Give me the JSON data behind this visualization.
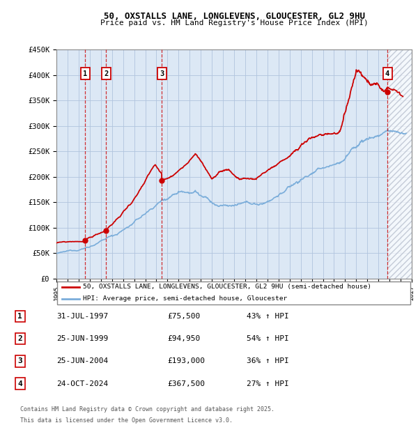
{
  "title_line1": "50, OXSTALLS LANE, LONGLEVENS, GLOUCESTER, GL2 9HU",
  "title_line2": "Price paid vs. HM Land Registry's House Price Index (HPI)",
  "ylabel_ticks": [
    "£0",
    "£50K",
    "£100K",
    "£150K",
    "£200K",
    "£250K",
    "£300K",
    "£350K",
    "£400K",
    "£450K"
  ],
  "ytick_values": [
    0,
    50000,
    100000,
    150000,
    200000,
    250000,
    300000,
    350000,
    400000,
    450000
  ],
  "xmin": 1995.0,
  "xmax": 2027.0,
  "ymin": 0,
  "ymax": 450000,
  "purchases": [
    {
      "num": 1,
      "date": "31-JUL-1997",
      "price": 75500,
      "year": 1997.58,
      "hpi_pct": "43%",
      "label": "1"
    },
    {
      "num": 2,
      "date": "25-JUN-1999",
      "price": 94950,
      "year": 1999.48,
      "hpi_pct": "54%",
      "label": "2"
    },
    {
      "num": 3,
      "date": "25-JUN-2004",
      "price": 193000,
      "year": 2004.48,
      "hpi_pct": "36%",
      "label": "3"
    },
    {
      "num": 4,
      "date": "24-OCT-2024",
      "price": 367500,
      "year": 2024.81,
      "hpi_pct": "27%",
      "label": "4"
    }
  ],
  "red_line_color": "#cc0000",
  "blue_line_color": "#7aadda",
  "background_color": "#dce8f5",
  "grid_color": "#b0c4de",
  "legend_label_red": "50, OXSTALLS LANE, LONGLEVENS, GLOUCESTER, GL2 9HU (semi-detached house)",
  "legend_label_blue": "HPI: Average price, semi-detached house, Gloucester",
  "footer_line1": "Contains HM Land Registry data © Crown copyright and database right 2025.",
  "footer_line2": "This data is licensed under the Open Government Licence v3.0.",
  "hatch_color": "#b0b8c8",
  "hatch_start": 2024.81
}
